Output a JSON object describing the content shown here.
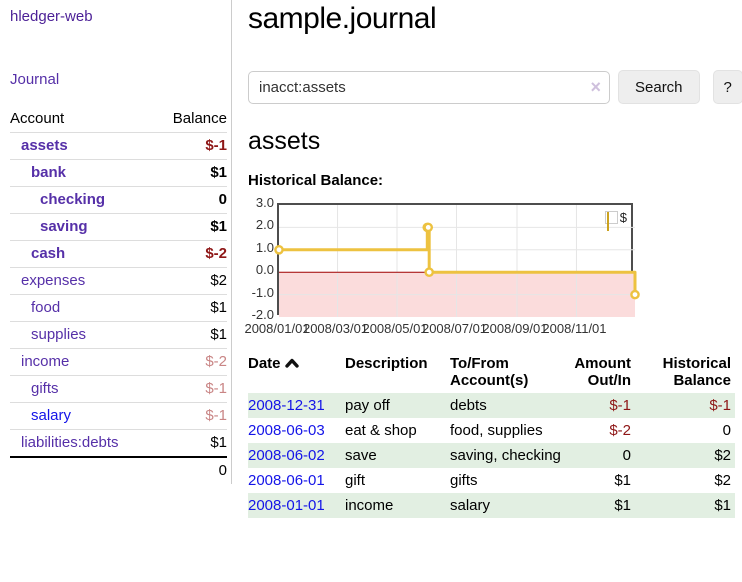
{
  "app": {
    "title": "hledger-web"
  },
  "sidebar": {
    "journal_link": "Journal",
    "account_header": "Account",
    "balance_header": "Balance",
    "accounts": [
      {
        "name": "assets",
        "balance": "$-1",
        "indent": 1,
        "matched": true,
        "balance_tone": "neg-strong",
        "link_tone": "purple"
      },
      {
        "name": "bank",
        "balance": "$1",
        "indent": 2,
        "matched": true,
        "balance_tone": "",
        "link_tone": "purple"
      },
      {
        "name": "checking",
        "balance": "0",
        "indent": 3,
        "matched": true,
        "balance_tone": "",
        "link_tone": "purple"
      },
      {
        "name": "saving",
        "balance": "$1",
        "indent": 3,
        "matched": true,
        "balance_tone": "",
        "link_tone": "purple"
      },
      {
        "name": "cash",
        "balance": "$-2",
        "indent": 2,
        "matched": true,
        "balance_tone": "neg-strong",
        "link_tone": "purple"
      },
      {
        "name": "expenses",
        "balance": "$2",
        "indent": 1,
        "matched": false,
        "balance_tone": "",
        "link_tone": "purple"
      },
      {
        "name": "food",
        "balance": "$1",
        "indent": 2,
        "matched": false,
        "balance_tone": "",
        "link_tone": "purple"
      },
      {
        "name": "supplies",
        "balance": "$1",
        "indent": 2,
        "matched": false,
        "balance_tone": "",
        "link_tone": "purple"
      },
      {
        "name": "income",
        "balance": "$-2",
        "indent": 1,
        "matched": false,
        "balance_tone": "neg-soft",
        "link_tone": "purple"
      },
      {
        "name": "gifts",
        "balance": "$-1",
        "indent": 2,
        "matched": false,
        "balance_tone": "neg-soft",
        "link_tone": "purple"
      },
      {
        "name": "salary",
        "balance": "$-1",
        "indent": 2,
        "matched": false,
        "balance_tone": "neg-soft",
        "link_tone": "blue"
      },
      {
        "name": "liabilities:debts",
        "balance": "$1",
        "indent": 1,
        "matched": false,
        "balance_tone": "",
        "link_tone": "purple"
      }
    ],
    "total": "0"
  },
  "header": {
    "title": "sample.journal"
  },
  "search": {
    "value": "inacct:assets",
    "clear_icon": "×",
    "button_label": "Search",
    "help_label": "?"
  },
  "register": {
    "heading": "assets",
    "chart_label": "Historical Balance:",
    "table": {
      "headers": [
        "Date",
        "Description",
        "To/From Account(s)",
        "Amount Out/In",
        "Historical Balance"
      ],
      "rows": [
        {
          "date": "2008-12-31",
          "description": "pay off",
          "accounts": "debts",
          "amount": "$-1",
          "balance": "$-1",
          "amount_tone": "neg-strong",
          "balance_tone": "neg-strong"
        },
        {
          "date": "2008-06-03",
          "description": "eat & shop",
          "accounts": "food, supplies",
          "amount": "$-2",
          "balance": "0",
          "amount_tone": "neg-strong",
          "balance_tone": ""
        },
        {
          "date": "2008-06-02",
          "description": "save",
          "accounts": "saving, checking",
          "amount": "0",
          "balance": "$2",
          "amount_tone": "",
          "balance_tone": ""
        },
        {
          "date": "2008-06-01",
          "description": "gift",
          "accounts": "gifts",
          "amount": "$1",
          "balance": "$2",
          "amount_tone": "",
          "balance_tone": ""
        },
        {
          "date": "2008-01-01",
          "description": "income",
          "accounts": "salary",
          "amount": "$1",
          "balance": "$1",
          "amount_tone": "",
          "balance_tone": ""
        }
      ]
    }
  },
  "chart_data": {
    "type": "line",
    "title": "Historical Balance:",
    "series": [
      {
        "name": "$",
        "color": "#edc240",
        "step": true,
        "points": [
          [
            "2008-01-01",
            1
          ],
          [
            "2008-06-01",
            2
          ],
          [
            "2008-06-02",
            2
          ],
          [
            "2008-06-03",
            0
          ],
          [
            "2008-12-31",
            -1
          ]
        ]
      }
    ],
    "xlabel": "",
    "ylabel": "",
    "ylim": [
      -2,
      3
    ],
    "yticks": [
      3.0,
      2.0,
      1.0,
      0.0,
      -1.0,
      -2.0
    ],
    "xticks": [
      "2008/01/01",
      "2008/03/01",
      "2008/05/01",
      "2008/07/01",
      "2008/09/01",
      "2008/11/01"
    ],
    "x_range": [
      "2008-01-01",
      "2008-12-31"
    ],
    "grid": true,
    "legend_position": "top-right",
    "legend_label": "$",
    "colors": {
      "grid": "#e6e6e6",
      "frame": "#4d4d4d",
      "negative_region_fill": "#fbdcdc",
      "zero_line": "#a00000",
      "marker_fill": "#ffffff"
    }
  }
}
